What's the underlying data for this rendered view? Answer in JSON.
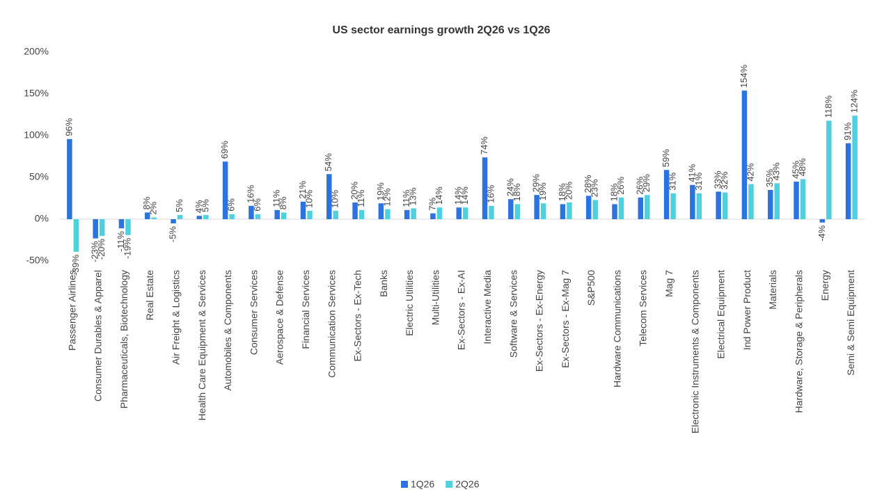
{
  "chart_data": {
    "type": "bar",
    "title": "US sector earnings growth 2Q26 vs 1Q26",
    "categories": [
      "Passenger Airlines",
      "Consumer Durables & Apparel",
      "Pharmaceuticals, Biotechnology",
      "Real Estate",
      "Air Freight & Logistics",
      "Health Care Equipment & Services",
      "Automobiles & Components",
      "Consumer Services",
      "Aerospace & Defense",
      "Financial Services",
      "Communication Services",
      "Ex-Sectors - Ex-Tech",
      "Banks",
      "Electric Utilities",
      "Multi-Utilities",
      "Ex-Sectors - Ex-AI",
      "Interactive Media",
      "Software & Services",
      "Ex-Sectors - Ex-Energy",
      "Ex-Sectors - Ex-Mag 7",
      "S&P500",
      "Hardware Communications",
      "Telecom Services",
      "Mag 7",
      "Electronic Instruments & Components",
      "Electrical Equipment",
      "Ind Power Product",
      "Materials",
      "Hardware, Storage & Peripherals",
      "Energy",
      "Semi & Semi Equipment"
    ],
    "series": [
      {
        "name": "1Q26",
        "color": "#2b74e0",
        "values": [
          96,
          -23,
          -11,
          8,
          -5,
          4,
          69,
          16,
          11,
          21,
          54,
          20,
          19,
          11,
          7,
          14,
          74,
          24,
          29,
          18,
          28,
          18,
          26,
          59,
          41,
          33,
          154,
          35,
          45,
          -4,
          91
        ],
        "value_labels": [
          "96%",
          "-23%",
          "-11%",
          "8%",
          "-5%",
          "4%",
          "69%",
          "16%",
          "11%",
          "21%",
          "54%",
          "20%",
          "19%",
          "11%",
          "7%",
          "14%",
          "74%",
          "24%",
          "29%",
          "18%",
          "28%",
          "18%",
          "26%",
          "59%",
          "41%",
          "33%",
          "154%",
          "35%",
          "45%",
          "-4%",
          "91%"
        ]
      },
      {
        "name": "2Q26",
        "color": "#4fd0de",
        "values": [
          -39,
          -20,
          -19,
          2,
          5,
          5,
          6,
          6,
          8,
          10,
          10,
          11,
          12,
          13,
          14,
          14,
          16,
          18,
          19,
          20,
          23,
          26,
          29,
          31,
          31,
          32,
          42,
          43,
          48,
          118,
          124
        ],
        "value_labels": [
          "-39%",
          "-20%",
          "-19%",
          "2%",
          "5%",
          "5%",
          "6%",
          "6%",
          "8%",
          "10%",
          "10%",
          "11%",
          "12%",
          "13%",
          "14%",
          "14%",
          "16%",
          "18%",
          "19%",
          "20%",
          "23%",
          "26%",
          "29%",
          "31%",
          "31%",
          "32%",
          "42%",
          "43%",
          "48%",
          "118%",
          "124%"
        ]
      }
    ],
    "ylim": [
      -50,
      200
    ],
    "yticks": [
      {
        "value": -50,
        "label": "-50%"
      },
      {
        "value": 0,
        "label": "0%"
      },
      {
        "value": 50,
        "label": "50%"
      },
      {
        "value": 100,
        "label": "100%"
      },
      {
        "value": 150,
        "label": "150%"
      },
      {
        "value": 200,
        "label": "200%"
      }
    ],
    "grid": false,
    "legend": "bottom"
  }
}
